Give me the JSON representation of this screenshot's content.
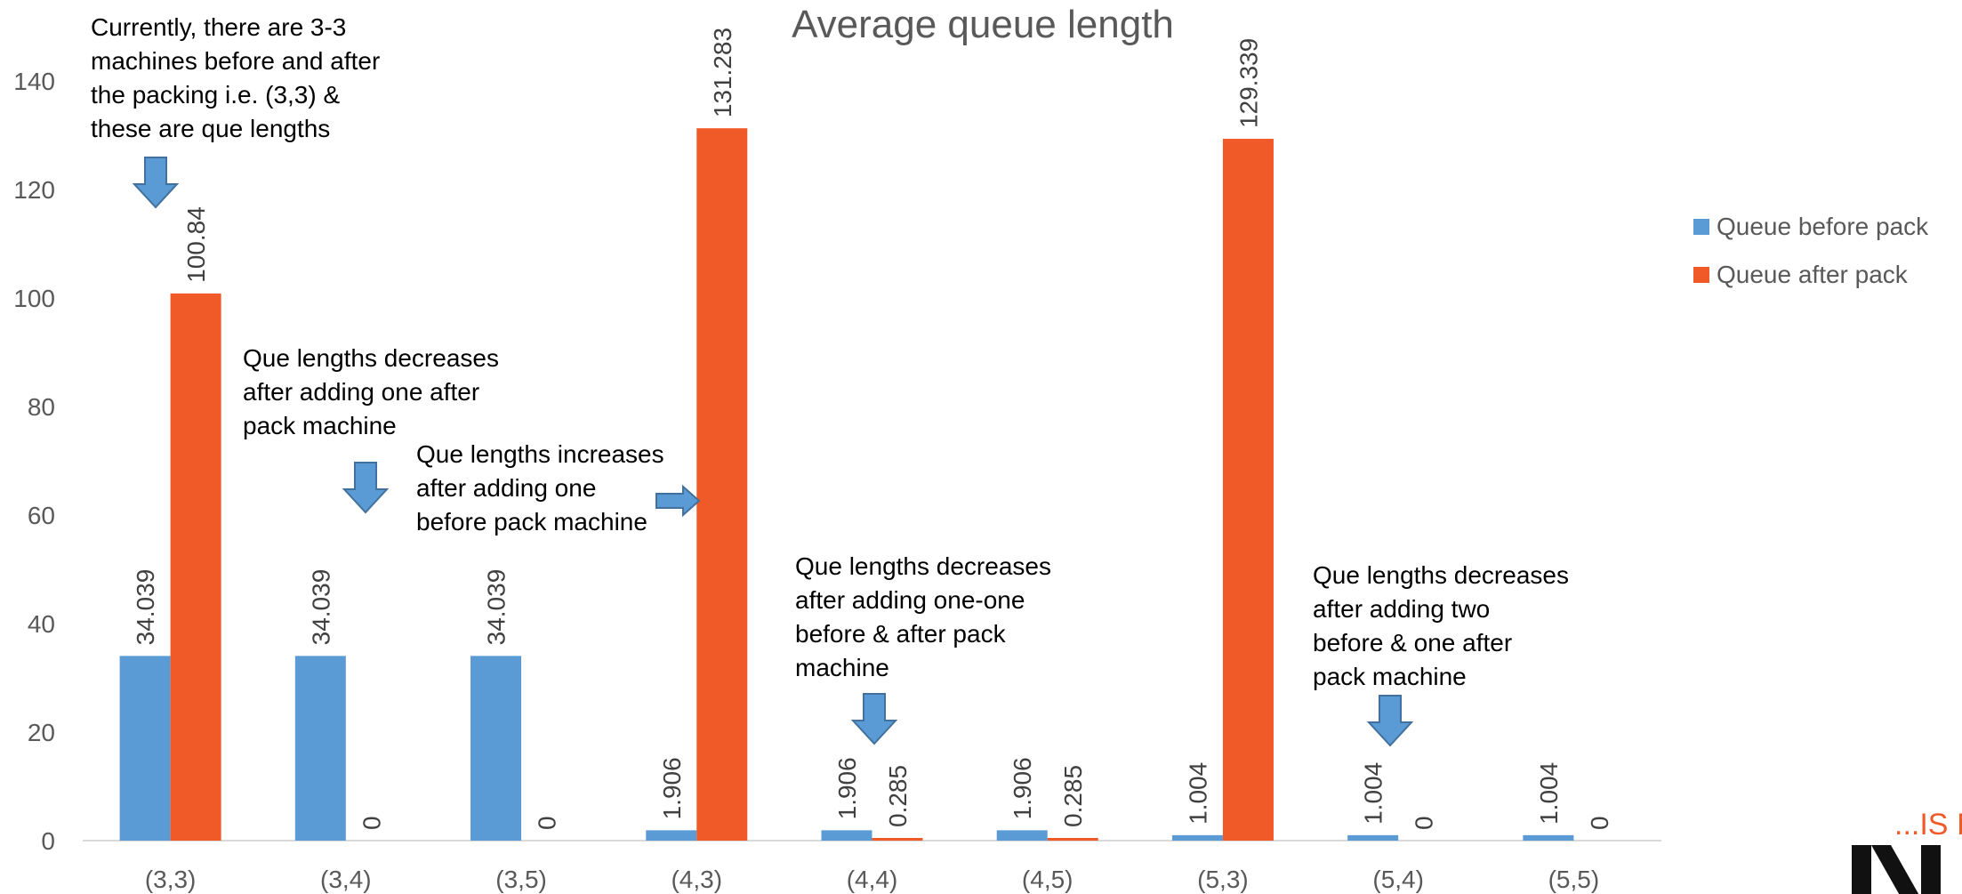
{
  "chart_data": {
    "type": "bar",
    "title": "Average queue length",
    "categories": [
      "(3,3)",
      "(3,4)",
      "(3,5)",
      "(4,3)",
      "(4,4)",
      "(4,5)",
      "(5,3)",
      "(5,4)",
      "(5,5)"
    ],
    "series": [
      {
        "name": "Queue before pack",
        "color": "#5B9BD5",
        "values": [
          34.039,
          34.039,
          34.039,
          1.906,
          1.906,
          1.906,
          1.004,
          1.004,
          1.004
        ],
        "labels": [
          "34.039",
          "34.039",
          "34.039",
          "1.906",
          "1.906",
          "1.906",
          "1.004",
          "1.004",
          "1.004"
        ]
      },
      {
        "name": "Queue after pack",
        "color": "#F05A28",
        "values": [
          100.84,
          0,
          0,
          131.283,
          0.285,
          0.285,
          129.339,
          0,
          0
        ],
        "labels": [
          "100.84",
          "0",
          "0",
          "131.283",
          "0.285",
          "0.285",
          "129.339",
          "0",
          "0"
        ]
      }
    ],
    "ylim": [
      0,
      140
    ],
    "yticks": [
      0,
      20,
      40,
      60,
      80,
      100,
      120,
      140
    ],
    "xlabel": "",
    "ylabel": "",
    "grid": false,
    "legend_position": "right",
    "annotations": [
      {
        "category": "(3,3)",
        "lines": [
          "Currently, there are 3-3",
          "machines before and after",
          "the packing i.e. (3,3) &",
          "these are que lengths"
        ],
        "arrow": "down"
      },
      {
        "category": "(3,4)",
        "lines": [
          "Que lengths decreases",
          "after adding one after",
          "pack machine"
        ],
        "arrow": "down"
      },
      {
        "category": "(4,3)",
        "lines": [
          "Que lengths increases",
          "after adding one",
          "before pack machine"
        ],
        "arrow": "right"
      },
      {
        "category": "(4,4)",
        "lines": [
          "Que lengths decreases",
          "after adding one-one",
          "before & after pack",
          "machine"
        ],
        "arrow": "down"
      },
      {
        "category": "(5,4)",
        "lines": [
          "Que lengths decreases",
          "after adding two",
          "before & one after",
          "pack machine"
        ],
        "arrow": "down"
      }
    ]
  },
  "logo": {
    "tagline": "...IS I",
    "color": "#F05A28"
  }
}
